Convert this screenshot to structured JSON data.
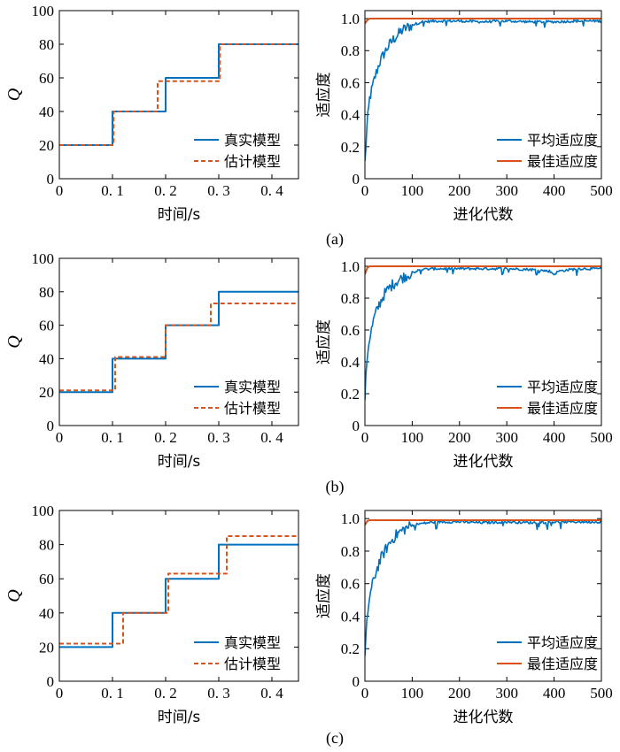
{
  "colors": {
    "blue": "#0072BD",
    "red": "#D95319",
    "axis": "#000000"
  },
  "captions": [
    "(a)",
    "(b)",
    "(c)"
  ],
  "chart_data": [
    {
      "type": "line",
      "panel": "a-left",
      "xlabel": "时间/s",
      "ylabel": "Q",
      "xlim": [
        0,
        0.45
      ],
      "ylim": [
        0,
        100
      ],
      "xticks": [
        0,
        0.1,
        0.2,
        0.3,
        0.4
      ],
      "xticklabels": [
        "0",
        "0. 1",
        "0. 2",
        "0. 3",
        "0. 4"
      ],
      "yticks": [
        0,
        20,
        40,
        60,
        80,
        100
      ],
      "yticklabels": [
        "0",
        "20",
        "40",
        "60",
        "80",
        "100"
      ],
      "legend_position": "bottom-right",
      "series": [
        {
          "name": "真实模型",
          "color": "#0072BD",
          "style": "solid",
          "shape": "step",
          "x": [
            0,
            0.1,
            0.2,
            0.3,
            0.45
          ],
          "y": [
            20,
            40,
            60,
            80,
            80
          ]
        },
        {
          "name": "估计模型",
          "color": "#D95319",
          "style": "dashed",
          "shape": "step",
          "x": [
            0,
            0.102,
            0.185,
            0.302,
            0.45
          ],
          "y": [
            20,
            40,
            58,
            80,
            80
          ]
        }
      ]
    },
    {
      "type": "line",
      "panel": "a-right",
      "xlabel": "进化代数",
      "ylabel": "适应度",
      "xlim": [
        0,
        500
      ],
      "ylim": [
        0,
        1.05
      ],
      "xticks": [
        0,
        100,
        200,
        300,
        400,
        500
      ],
      "xticklabels": [
        "0",
        "100",
        "200",
        "300",
        "400",
        "500"
      ],
      "yticks": [
        0,
        0.2,
        0.4,
        0.6,
        0.8,
        1.0
      ],
      "yticklabels": [
        "0",
        "0.2",
        "0.4",
        "0.6",
        "0.8",
        "1.0"
      ],
      "legend_position": "bottom-right",
      "series": [
        {
          "name": "平均适应度",
          "color": "#0072BD",
          "style": "noisy",
          "x": [
            0,
            5,
            10,
            20,
            30,
            40,
            50,
            60,
            70,
            80,
            100,
            120,
            150,
            200,
            250,
            300,
            350,
            400,
            450,
            500
          ],
          "y": [
            0.1,
            0.35,
            0.5,
            0.62,
            0.72,
            0.78,
            0.83,
            0.87,
            0.9,
            0.93,
            0.96,
            0.98,
            0.985,
            0.985,
            0.98,
            0.985,
            0.98,
            0.98,
            0.985,
            0.985
          ]
        },
        {
          "name": "最佳适应度",
          "color": "#D95319",
          "style": "solid",
          "x": [
            0,
            5,
            10,
            500
          ],
          "y": [
            0.97,
            0.99,
            1.0,
            1.0
          ]
        }
      ]
    },
    {
      "type": "line",
      "panel": "b-left",
      "xlabel": "时间/s",
      "ylabel": "Q",
      "xlim": [
        0,
        0.45
      ],
      "ylim": [
        0,
        100
      ],
      "xticks": [
        0,
        0.1,
        0.2,
        0.3,
        0.4
      ],
      "xticklabels": [
        "0",
        "0. 1",
        "0. 2",
        "0. 3",
        "0. 4"
      ],
      "yticks": [
        0,
        20,
        40,
        60,
        80,
        100
      ],
      "yticklabels": [
        "0",
        "20",
        "40",
        "60",
        "80",
        "100"
      ],
      "legend_position": "bottom-right",
      "series": [
        {
          "name": "真实模型",
          "color": "#0072BD",
          "style": "solid",
          "shape": "step",
          "x": [
            0,
            0.1,
            0.2,
            0.3,
            0.45
          ],
          "y": [
            20,
            40,
            60,
            80,
            80
          ]
        },
        {
          "name": "估计模型",
          "color": "#D95319",
          "style": "dashed",
          "shape": "step",
          "x": [
            0,
            0.105,
            0.2,
            0.285,
            0.45
          ],
          "y": [
            21,
            41,
            60,
            73,
            73
          ]
        }
      ]
    },
    {
      "type": "line",
      "panel": "b-right",
      "xlabel": "进化代数",
      "ylabel": "适应度",
      "xlim": [
        0,
        500
      ],
      "ylim": [
        0,
        1.05
      ],
      "xticks": [
        0,
        100,
        200,
        300,
        400,
        500
      ],
      "xticklabels": [
        "0",
        "100",
        "200",
        "300",
        "400",
        "500"
      ],
      "yticks": [
        0,
        0.2,
        0.4,
        0.6,
        0.8,
        1.0
      ],
      "yticklabels": [
        "0",
        "0.2",
        "0.4",
        "0.6",
        "0.8",
        "1.0"
      ],
      "legend_position": "bottom-right",
      "series": [
        {
          "name": "平均适应度",
          "color": "#0072BD",
          "style": "noisy",
          "x": [
            0,
            5,
            10,
            20,
            30,
            40,
            50,
            60,
            70,
            80,
            100,
            120,
            150,
            200,
            250,
            300,
            350,
            390,
            400,
            410,
            450,
            500
          ],
          "y": [
            0.18,
            0.45,
            0.55,
            0.68,
            0.76,
            0.82,
            0.86,
            0.89,
            0.91,
            0.93,
            0.96,
            0.98,
            0.985,
            0.985,
            0.985,
            0.985,
            0.98,
            0.97,
            0.95,
            0.97,
            0.985,
            0.985
          ]
        },
        {
          "name": "最佳适应度",
          "color": "#D95319",
          "style": "solid",
          "x": [
            0,
            5,
            10,
            500
          ],
          "y": [
            0.95,
            0.99,
            1.0,
            1.0
          ]
        }
      ]
    },
    {
      "type": "line",
      "panel": "c-left",
      "xlabel": "时间/s",
      "ylabel": "Q",
      "xlim": [
        0,
        0.45
      ],
      "ylim": [
        0,
        100
      ],
      "xticks": [
        0,
        0.1,
        0.2,
        0.3,
        0.4
      ],
      "xticklabels": [
        "0",
        "0. 1",
        "0. 2",
        "0. 3",
        "0. 4"
      ],
      "yticks": [
        0,
        20,
        40,
        60,
        80,
        100
      ],
      "yticklabels": [
        "0",
        "20",
        "40",
        "60",
        "80",
        "100"
      ],
      "legend_position": "bottom-right",
      "series": [
        {
          "name": "真实模型",
          "color": "#0072BD",
          "style": "solid",
          "shape": "step",
          "x": [
            0,
            0.1,
            0.2,
            0.3,
            0.45
          ],
          "y": [
            20,
            40,
            60,
            80,
            80
          ]
        },
        {
          "name": "估计模型",
          "color": "#D95319",
          "style": "dashed",
          "shape": "step",
          "x": [
            0,
            0.12,
            0.205,
            0.315,
            0.45
          ],
          "y": [
            22,
            40,
            63,
            85,
            85
          ]
        }
      ]
    },
    {
      "type": "line",
      "panel": "c-right",
      "xlabel": "进化代数",
      "ylabel": "适应度",
      "xlim": [
        0,
        500
      ],
      "ylim": [
        0,
        1.05
      ],
      "xticks": [
        0,
        100,
        200,
        300,
        400,
        500
      ],
      "xticklabels": [
        "0",
        "100",
        "200",
        "300",
        "400",
        "500"
      ],
      "yticks": [
        0,
        0.2,
        0.4,
        0.6,
        0.8,
        1.0
      ],
      "yticklabels": [
        "0",
        "0.2",
        "0.4",
        "0.6",
        "0.8",
        "1.0"
      ],
      "legend_position": "bottom-right",
      "series": [
        {
          "name": "平均适应度",
          "color": "#0072BD",
          "style": "noisy",
          "x": [
            0,
            5,
            10,
            20,
            30,
            40,
            50,
            60,
            70,
            80,
            100,
            120,
            150,
            200,
            250,
            300,
            350,
            400,
            450,
            500
          ],
          "y": [
            0.14,
            0.4,
            0.52,
            0.64,
            0.73,
            0.79,
            0.84,
            0.88,
            0.91,
            0.93,
            0.96,
            0.97,
            0.98,
            0.98,
            0.975,
            0.98,
            0.975,
            0.98,
            0.98,
            0.98
          ]
        },
        {
          "name": "最佳适应度",
          "color": "#D95319",
          "style": "solid",
          "x": [
            0,
            5,
            10,
            500
          ],
          "y": [
            0.96,
            0.985,
            0.99,
            0.99
          ]
        }
      ]
    }
  ]
}
